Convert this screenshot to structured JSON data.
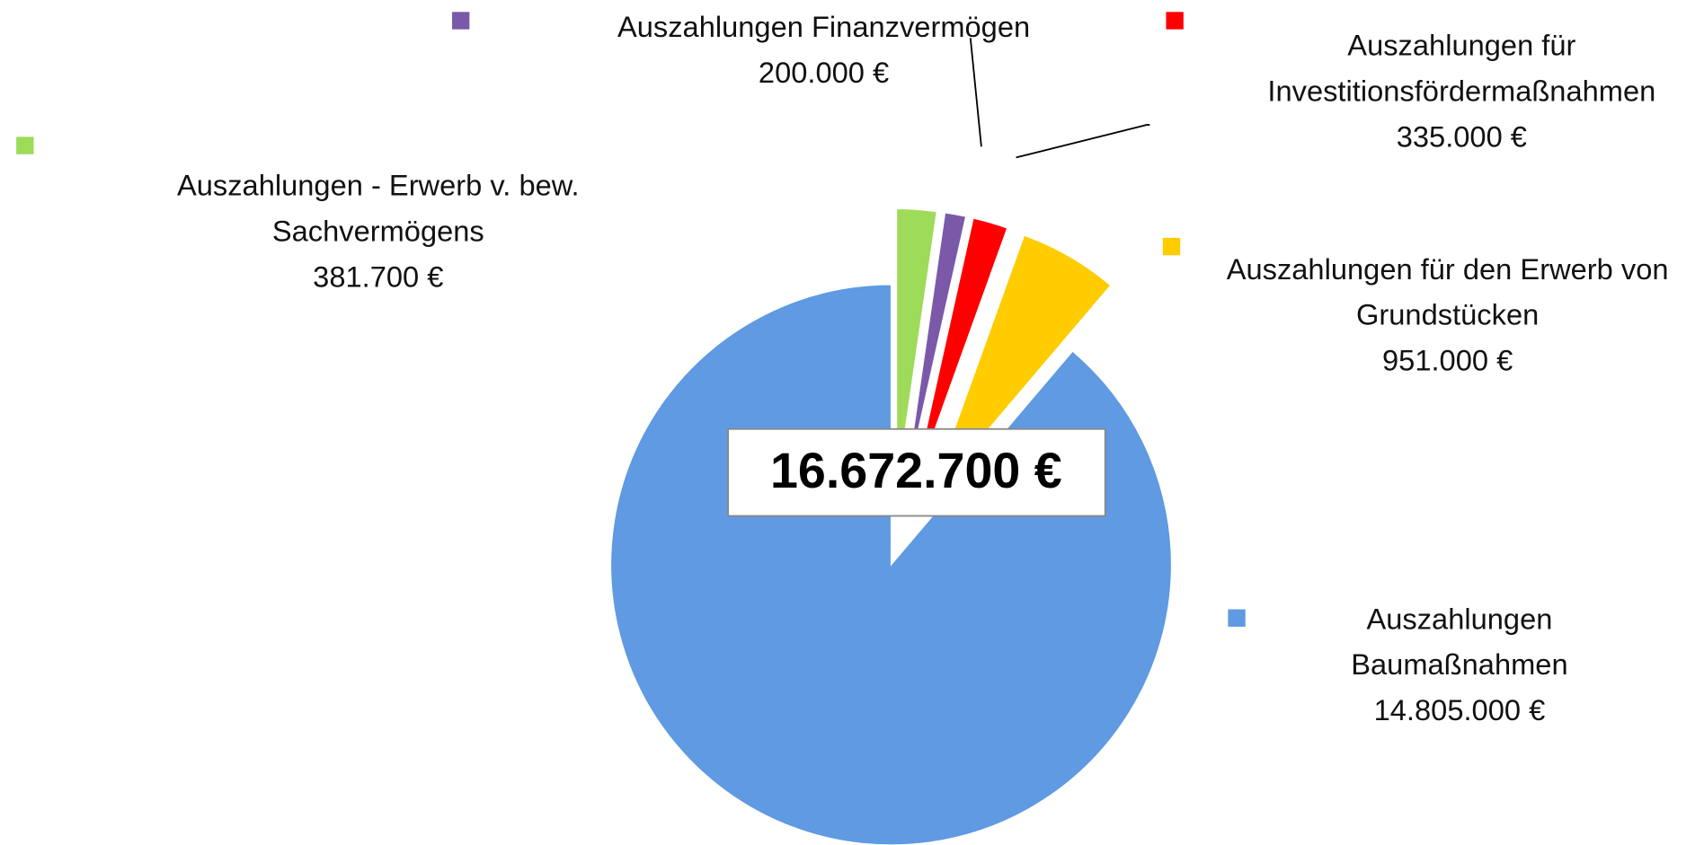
{
  "chart_data": {
    "type": "pie",
    "categories": [
      "Auszahlungen - Erwerb v. bew. Sachvermögens",
      "Auszahlungen Finanzvermögen",
      "Auszahlungen für Investitionsfördermaßnahmen",
      "Auszahlungen für den Erwerb von Grundstücken",
      "Auszahlungen Baumaßnahmen"
    ],
    "values": [
      381700,
      200000,
      335000,
      951000,
      14805000
    ],
    "value_labels": [
      "381.700 €",
      "200.000 €",
      "335.000 €",
      "951.000 €",
      "14.805.000 €"
    ],
    "colors": [
      "#9ddb58",
      "#7b59a8",
      "#ff0000",
      "#ffcc00",
      "#5f9ae2"
    ],
    "total": {
      "value": 16672700,
      "label": "16.672.700 €"
    }
  }
}
